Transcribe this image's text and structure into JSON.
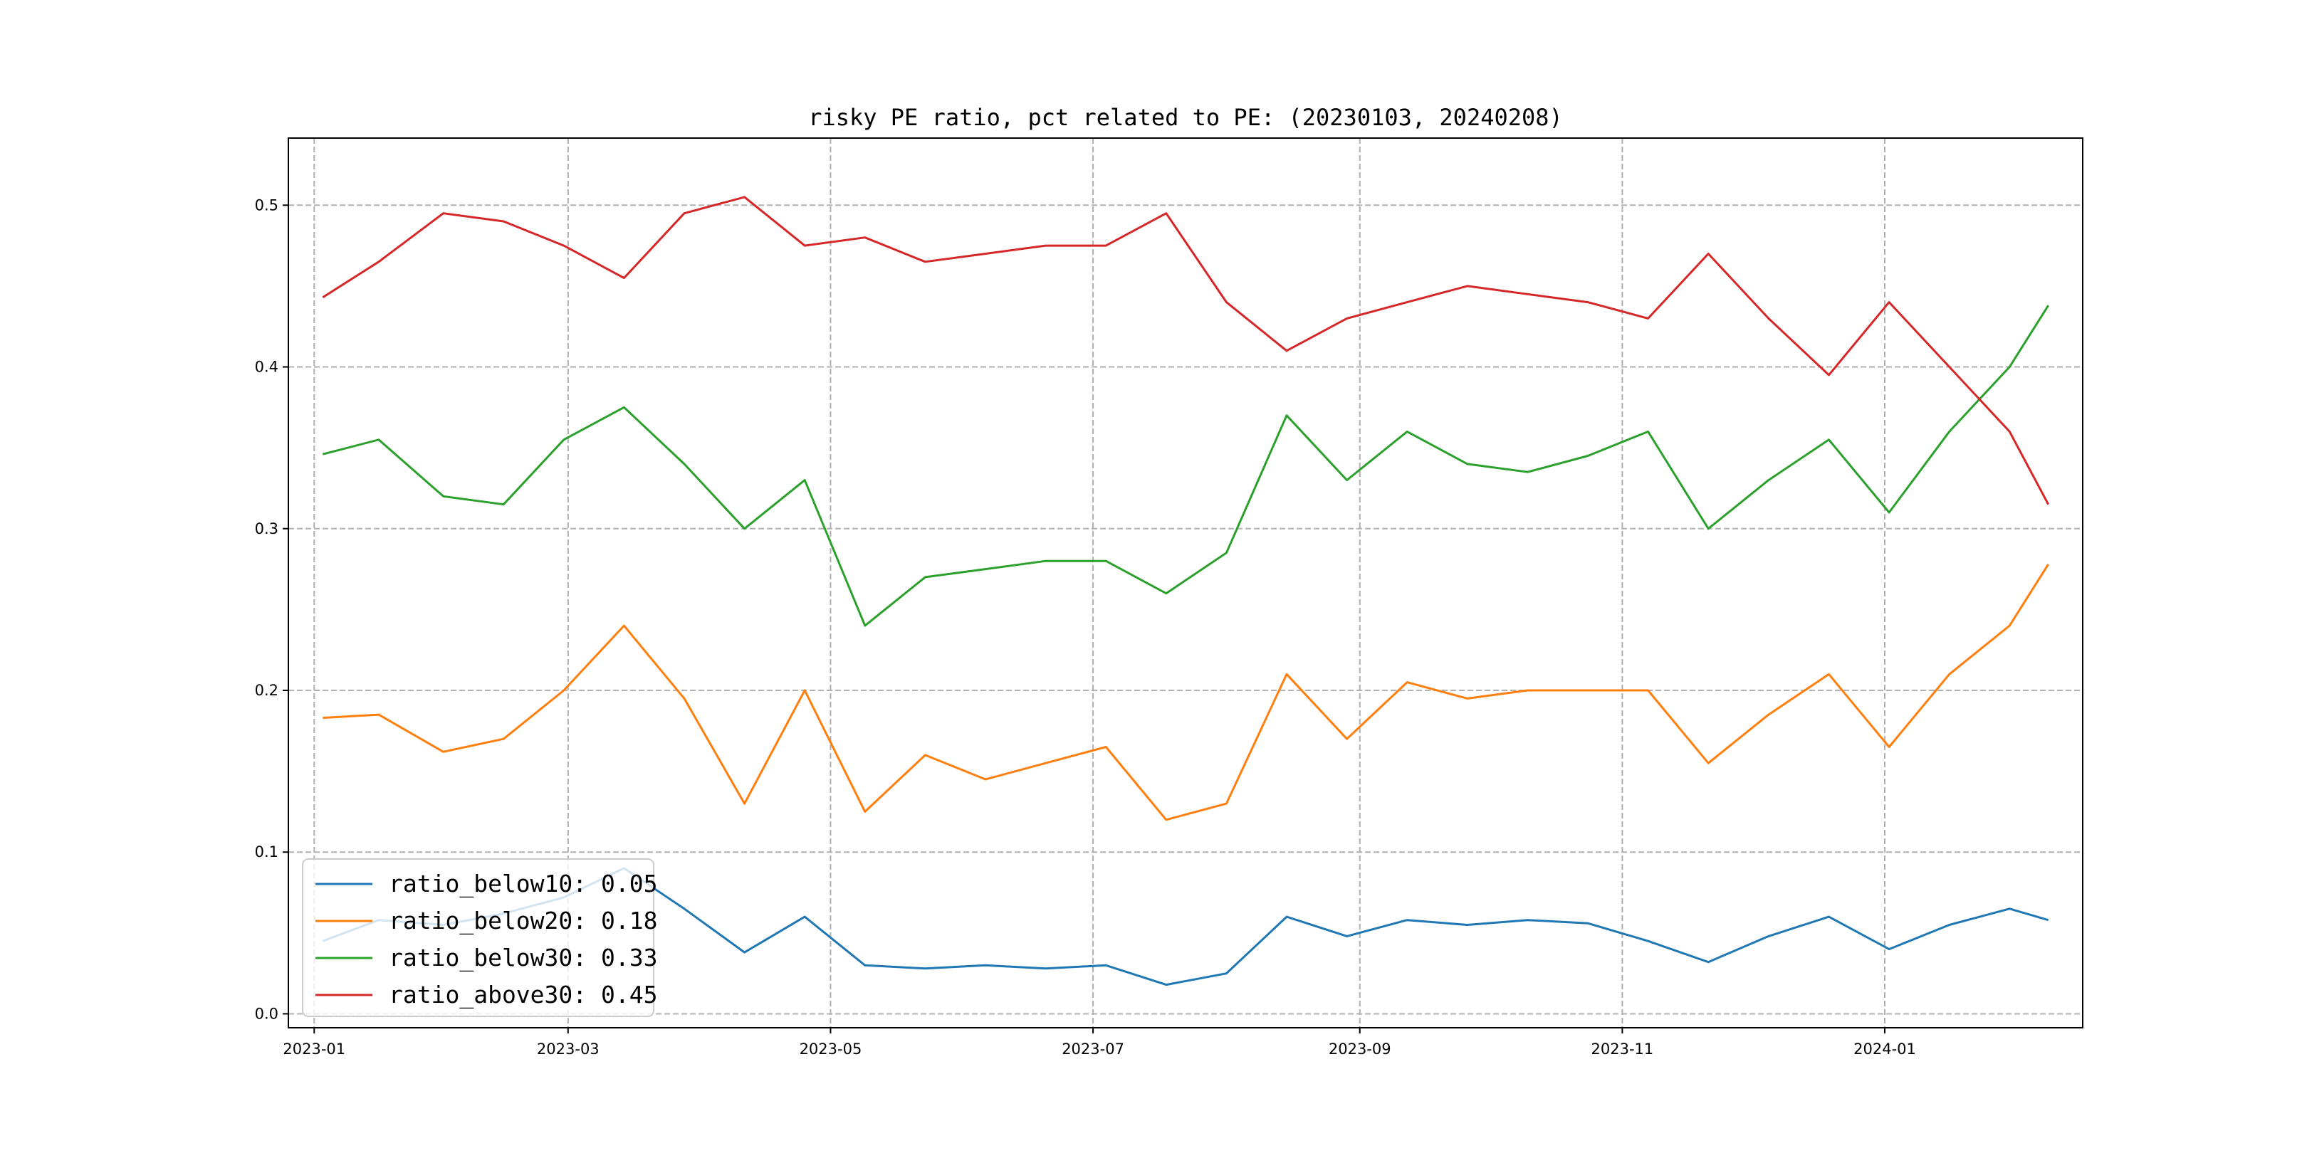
{
  "chart_data": {
    "type": "line",
    "title": "risky PE ratio, pct related to PE: (20230103, 20240208)",
    "xlabel": "",
    "ylabel": "",
    "x_range": [
      "2022-12-26",
      "2024-02-16"
    ],
    "ylim": [
      -0.0086,
      0.5415
    ],
    "grid": true,
    "legend_position": "lower-left",
    "x_tick_labels": [
      "2023-01",
      "2023-03",
      "2023-05",
      "2023-07",
      "2023-09",
      "2023-11",
      "2024-01"
    ],
    "y_tick_labels": [
      "0.0",
      "0.1",
      "0.2",
      "0.3",
      "0.4",
      "0.5"
    ],
    "x": [
      "2023-01-03",
      "2023-01-16",
      "2023-01-31",
      "2023-02-14",
      "2023-02-28",
      "2023-03-14",
      "2023-03-28",
      "2023-04-11",
      "2023-04-25",
      "2023-05-09",
      "2023-05-23",
      "2023-06-06",
      "2023-06-20",
      "2023-07-04",
      "2023-07-18",
      "2023-08-01",
      "2023-08-15",
      "2023-08-29",
      "2023-09-12",
      "2023-09-26",
      "2023-10-10",
      "2023-10-24",
      "2023-11-07",
      "2023-11-21",
      "2023-12-05",
      "2023-12-19",
      "2024-01-02",
      "2024-01-16",
      "2024-01-30",
      "2024-02-08"
    ],
    "series": [
      {
        "name": "ratio_below10",
        "color": "#1f77b4",
        "values": [
          0.045,
          0.058,
          0.055,
          0.062,
          0.072,
          0.09,
          0.065,
          0.038,
          0.06,
          0.03,
          0.028,
          0.03,
          0.028,
          0.03,
          0.018,
          0.025,
          0.06,
          0.048,
          0.058,
          0.055,
          0.058,
          0.056,
          0.045,
          0.032,
          0.048,
          0.06,
          0.04,
          0.055,
          0.065,
          0.058
        ]
      },
      {
        "name": "ratio_below20",
        "color": "#ff7f0e",
        "values": [
          0.183,
          0.185,
          0.162,
          0.17,
          0.2,
          0.24,
          0.195,
          0.13,
          0.2,
          0.125,
          0.16,
          0.145,
          0.155,
          0.165,
          0.12,
          0.13,
          0.21,
          0.17,
          0.205,
          0.195,
          0.2,
          0.2,
          0.2,
          0.155,
          0.185,
          0.21,
          0.165,
          0.21,
          0.24,
          0.278
        ]
      },
      {
        "name": "ratio_below30",
        "color": "#2ca02c",
        "values": [
          0.346,
          0.355,
          0.32,
          0.315,
          0.355,
          0.375,
          0.34,
          0.3,
          0.33,
          0.24,
          0.27,
          0.275,
          0.28,
          0.28,
          0.26,
          0.285,
          0.37,
          0.33,
          0.36,
          0.34,
          0.335,
          0.345,
          0.36,
          0.3,
          0.33,
          0.355,
          0.31,
          0.36,
          0.4,
          0.438
        ]
      },
      {
        "name": "ratio_above30",
        "color": "#d62728",
        "values": [
          0.443,
          0.465,
          0.495,
          0.49,
          0.475,
          0.455,
          0.495,
          0.505,
          0.475,
          0.48,
          0.465,
          0.47,
          0.475,
          0.475,
          0.495,
          0.44,
          0.41,
          0.43,
          0.44,
          0.45,
          0.445,
          0.44,
          0.43,
          0.47,
          0.43,
          0.395,
          0.44,
          0.4,
          0.36,
          0.315
        ]
      }
    ],
    "legend_entries": [
      "ratio_below10: 0.05",
      "ratio_below20: 0.18",
      "ratio_below30: 0.33",
      "ratio_above30: 0.45"
    ]
  }
}
